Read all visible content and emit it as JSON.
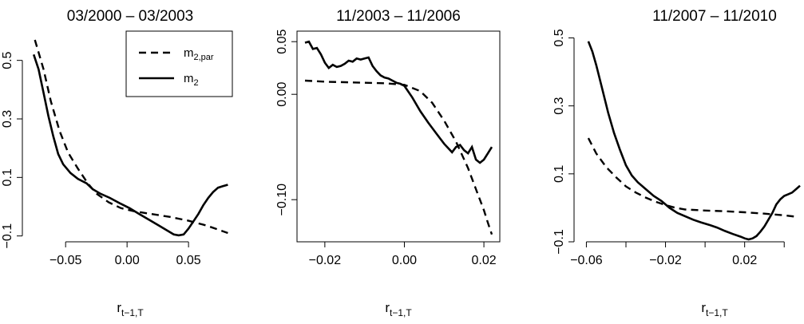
{
  "chart_data": [
    {
      "type": "line",
      "title": "03/2000 – 03/2003",
      "xlabel": "r",
      "xlabel_sub": "t−1,T",
      "ylabel": "",
      "xlim": [
        -0.08,
        0.085
      ],
      "ylim": [
        -0.12,
        0.6
      ],
      "xticks": [
        -0.05,
        0.0,
        0.05
      ],
      "xtick_labels": [
        "−0.05",
        "0.00",
        "0.05"
      ],
      "yticks": [
        -0.1,
        0.1,
        0.3,
        0.5
      ],
      "ytick_labels": [
        "−0.1",
        "0.1",
        "0.3",
        "0.5"
      ],
      "legend": {
        "position": "top-right",
        "entries": [
          {
            "main": "m",
            "sub": "2,par",
            "style": "dashed"
          },
          {
            "main": "m",
            "sub": "2",
            "style": "solid"
          }
        ]
      },
      "series": [
        {
          "style": "dashed",
          "x": [
            -0.075,
            -0.068,
            -0.062,
            -0.055,
            -0.048,
            -0.04,
            -0.032,
            -0.025,
            -0.015,
            -0.005,
            0.005,
            0.02,
            0.035,
            0.05,
            0.065,
            0.082
          ],
          "y": [
            0.57,
            0.47,
            0.36,
            0.26,
            0.185,
            0.13,
            0.08,
            0.045,
            0.015,
            -0.005,
            -0.015,
            -0.025,
            -0.035,
            -0.048,
            -0.065,
            -0.09
          ]
        },
        {
          "style": "solid",
          "x": [
            -0.076,
            -0.072,
            -0.068,
            -0.064,
            -0.06,
            -0.056,
            -0.052,
            -0.046,
            -0.04,
            -0.033,
            -0.028,
            -0.022,
            -0.014,
            -0.006,
            0.002,
            0.01,
            0.018,
            0.026,
            0.032,
            0.038,
            0.042,
            0.046,
            0.05,
            0.054,
            0.058,
            0.062,
            0.066,
            0.07,
            0.074,
            0.078,
            0.082
          ],
          "y": [
            0.52,
            0.47,
            0.39,
            0.31,
            0.24,
            0.18,
            0.145,
            0.115,
            0.095,
            0.08,
            0.06,
            0.045,
            0.03,
            0.012,
            -0.005,
            -0.025,
            -0.045,
            -0.065,
            -0.08,
            -0.095,
            -0.098,
            -0.095,
            -0.075,
            -0.05,
            -0.025,
            0.005,
            0.03,
            0.05,
            0.065,
            0.07,
            0.075
          ]
        }
      ]
    },
    {
      "type": "line",
      "title": "11/2003 – 11/2006",
      "xlabel": "r",
      "xlabel_sub": "t−1,T",
      "ylabel": "",
      "xlim": [
        -0.027,
        0.024
      ],
      "ylim": [
        -0.14,
        0.06
      ],
      "xticks": [
        -0.02,
        0.0,
        0.02
      ],
      "xtick_labels": [
        "−0.02",
        "0.00",
        "0.02"
      ],
      "yticks": [
        -0.1,
        0.0,
        0.05
      ],
      "ytick_labels": [
        "−0.10",
        "0.00",
        "0.05"
      ],
      "series": [
        {
          "style": "dashed",
          "x": [
            -0.025,
            -0.02,
            -0.015,
            -0.01,
            -0.005,
            0.0,
            0.004,
            0.007,
            0.01,
            0.013,
            0.016,
            0.018,
            0.02,
            0.021,
            0.022
          ],
          "y": [
            0.013,
            0.012,
            0.0115,
            0.011,
            0.0105,
            0.009,
            0.003,
            -0.008,
            -0.025,
            -0.045,
            -0.07,
            -0.09,
            -0.11,
            -0.122,
            -0.133
          ]
        },
        {
          "style": "solid",
          "x": [
            -0.025,
            -0.024,
            -0.023,
            -0.022,
            -0.021,
            -0.02,
            -0.019,
            -0.018,
            -0.017,
            -0.016,
            -0.015,
            -0.014,
            -0.013,
            -0.012,
            -0.011,
            -0.01,
            -0.009,
            -0.008,
            -0.007,
            -0.006,
            -0.005,
            -0.004,
            -0.003,
            -0.002,
            -0.001,
            0.0,
            0.002,
            0.004,
            0.006,
            0.008,
            0.01,
            0.012,
            0.013,
            0.014,
            0.015,
            0.016,
            0.017,
            0.018,
            0.019,
            0.02,
            0.021,
            0.022
          ],
          "y": [
            0.049,
            0.05,
            0.043,
            0.044,
            0.038,
            0.03,
            0.025,
            0.028,
            0.026,
            0.027,
            0.029,
            0.032,
            0.031,
            0.034,
            0.033,
            0.034,
            0.035,
            0.027,
            0.022,
            0.018,
            0.016,
            0.015,
            0.013,
            0.011,
            0.01,
            0.008,
            -0.003,
            -0.016,
            -0.027,
            -0.037,
            -0.047,
            -0.055,
            -0.05,
            -0.048,
            -0.053,
            -0.056,
            -0.05,
            -0.062,
            -0.065,
            -0.062,
            -0.056,
            -0.05
          ]
        }
      ]
    },
    {
      "type": "line",
      "title": "11/2007 – 11/2010",
      "xlabel": "r",
      "xlabel_sub": "t−1,T",
      "ylabel": "",
      "xlim": [
        -0.063,
        0.05
      ],
      "ylim": [
        -0.1,
        0.52
      ],
      "xticks": [
        -0.06,
        -0.04,
        -0.02,
        0.0,
        0.02,
        0.04
      ],
      "xtick_labels": [
        "−0.06",
        "",
        "−0.02",
        "",
        "0.02",
        ""
      ],
      "yticks": [
        -0.1,
        0.1,
        0.3,
        0.5
      ],
      "ytick_labels": [
        "−0.1",
        "0.1",
        "0.3",
        "0.5"
      ],
      "series": [
        {
          "style": "dashed",
          "x": [
            -0.059,
            -0.055,
            -0.05,
            -0.045,
            -0.04,
            -0.035,
            -0.03,
            -0.025,
            -0.02,
            -0.015,
            -0.01,
            0.0,
            0.01,
            0.02,
            0.03,
            0.04,
            0.047
          ],
          "y": [
            0.205,
            0.16,
            0.12,
            0.09,
            0.063,
            0.045,
            0.03,
            0.018,
            0.008,
            0.0,
            -0.005,
            -0.008,
            -0.01,
            -0.013,
            -0.017,
            -0.022,
            -0.027
          ]
        },
        {
          "style": "solid",
          "x": [
            -0.059,
            -0.057,
            -0.055,
            -0.052,
            -0.049,
            -0.046,
            -0.043,
            -0.04,
            -0.037,
            -0.034,
            -0.03,
            -0.026,
            -0.022,
            -0.018,
            -0.014,
            -0.01,
            -0.006,
            -0.002,
            0.002,
            0.006,
            0.01,
            0.014,
            0.018,
            0.02,
            0.022,
            0.024,
            0.026,
            0.028,
            0.03,
            0.032,
            0.034,
            0.036,
            0.038,
            0.04,
            0.042,
            0.044,
            0.046,
            0.048
          ],
          "y": [
            0.49,
            0.46,
            0.42,
            0.35,
            0.28,
            0.22,
            0.17,
            0.125,
            0.095,
            0.075,
            0.055,
            0.035,
            0.02,
            0.0,
            -0.015,
            -0.025,
            -0.035,
            -0.043,
            -0.05,
            -0.058,
            -0.068,
            -0.077,
            -0.085,
            -0.09,
            -0.093,
            -0.09,
            -0.083,
            -0.07,
            -0.055,
            -0.035,
            -0.015,
            0.01,
            0.025,
            0.035,
            0.04,
            0.045,
            0.055,
            0.065
          ]
        }
      ]
    }
  ]
}
